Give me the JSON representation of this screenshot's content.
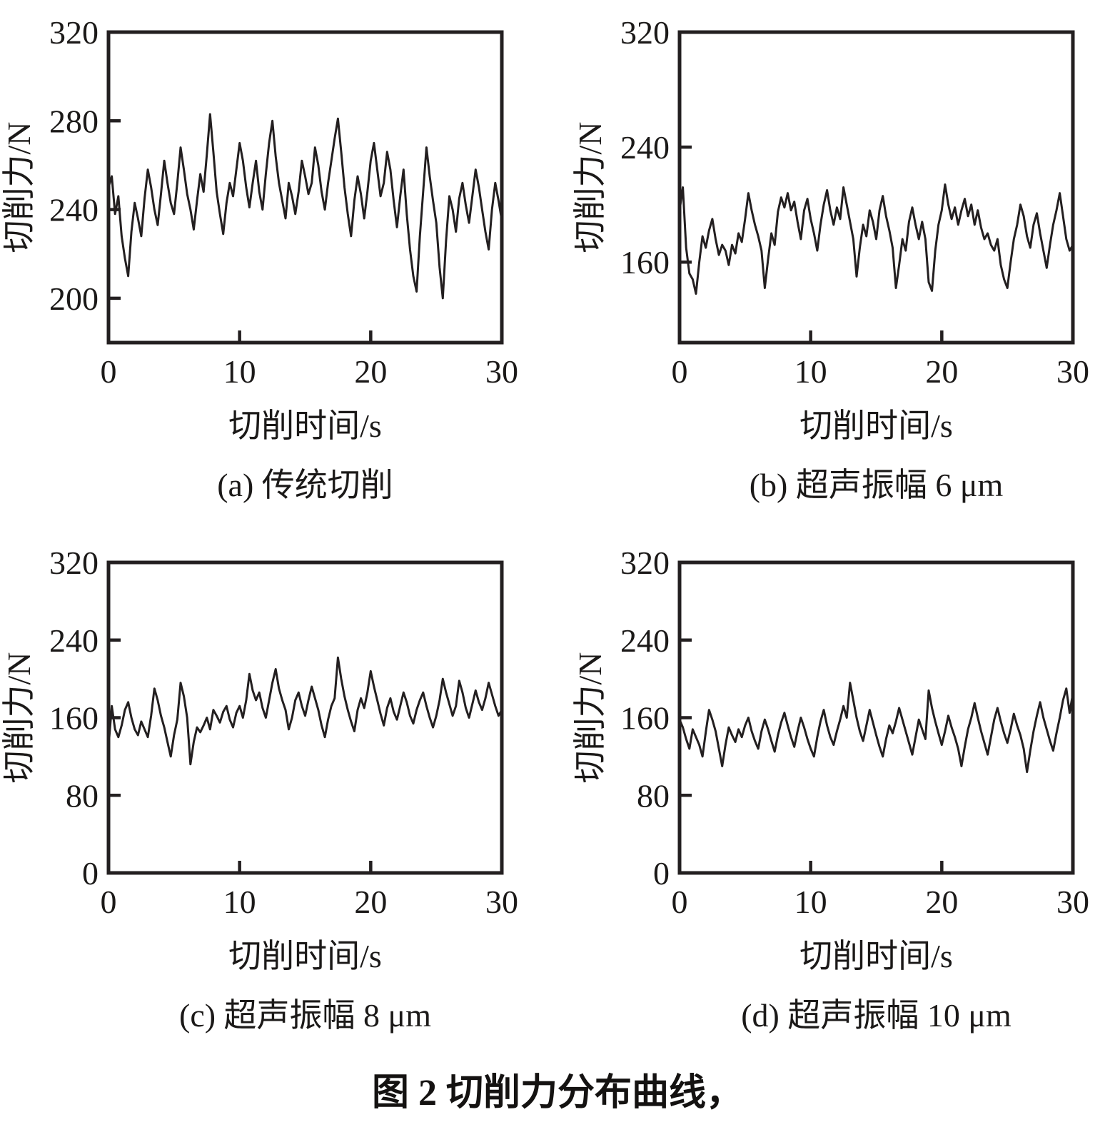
{
  "figure": {
    "caption": "图 2 切削力分布曲线，"
  },
  "colors": {
    "line": "#231f20",
    "axis": "#231f20",
    "text": "#1b1918",
    "background": "#ffffff"
  },
  "chart_data": [
    {
      "type": "line",
      "panel": "a",
      "caption": "(a) 传统切削",
      "xlabel": "切削时间/s",
      "ylabel": "切削力/N",
      "xlim": [
        0,
        30
      ],
      "xticks": [
        0,
        10,
        20,
        30
      ],
      "ylim": [
        180,
        320
      ],
      "yticks": [
        320,
        280,
        240,
        200
      ],
      "x_step": 0.25,
      "values": [
        250,
        255,
        238,
        246,
        228,
        218,
        210,
        230,
        243,
        236,
        228,
        245,
        258,
        250,
        240,
        233,
        247,
        262,
        252,
        243,
        238,
        252,
        268,
        258,
        247,
        240,
        231,
        244,
        256,
        248,
        265,
        283,
        266,
        248,
        238,
        229,
        243,
        252,
        246,
        258,
        270,
        262,
        250,
        241,
        252,
        262,
        248,
        240,
        256,
        270,
        280,
        264,
        252,
        244,
        236,
        252,
        246,
        238,
        248,
        262,
        255,
        247,
        252,
        268,
        260,
        248,
        240,
        252,
        262,
        272,
        281,
        266,
        250,
        238,
        228,
        244,
        255,
        247,
        236,
        248,
        262,
        270,
        258,
        246,
        252,
        266,
        258,
        244,
        232,
        246,
        258,
        238,
        222,
        210,
        203,
        228,
        248,
        268,
        255,
        244,
        234,
        214,
        200,
        226,
        246,
        240,
        230,
        245,
        252,
        242,
        234,
        246,
        258,
        250,
        240,
        230,
        222,
        240,
        252,
        244,
        235
      ]
    },
    {
      "type": "line",
      "panel": "b",
      "caption": "(b) 超声振幅 6 μm",
      "xlabel": "切削时间/s",
      "ylabel": "切削力/N",
      "xlim": [
        0,
        30
      ],
      "xticks": [
        0,
        10,
        20,
        30
      ],
      "ylim": [
        104,
        320
      ],
      "yticks": [
        320,
        240,
        160
      ],
      "x_step": 0.25,
      "values": [
        196,
        212,
        170,
        152,
        148,
        138,
        160,
        178,
        170,
        182,
        190,
        176,
        165,
        172,
        168,
        158,
        172,
        166,
        180,
        174,
        190,
        208,
        196,
        186,
        178,
        168,
        142,
        162,
        180,
        172,
        195,
        205,
        198,
        208,
        196,
        202,
        188,
        176,
        196,
        204,
        190,
        180,
        168,
        186,
        200,
        210,
        196,
        186,
        198,
        190,
        212,
        200,
        188,
        176,
        150,
        170,
        186,
        178,
        196,
        188,
        176,
        196,
        206,
        192,
        182,
        170,
        142,
        158,
        176,
        168,
        188,
        198,
        186,
        176,
        188,
        176,
        146,
        140,
        168,
        186,
        196,
        214,
        200,
        190,
        198,
        186,
        196,
        204,
        192,
        200,
        186,
        196,
        184,
        176,
        180,
        172,
        168,
        176,
        158,
        148,
        142,
        160,
        176,
        186,
        200,
        192,
        178,
        170,
        186,
        194,
        180,
        168,
        156,
        172,
        186,
        196,
        208,
        192,
        176,
        168,
        172
      ]
    },
    {
      "type": "line",
      "panel": "c",
      "caption": "(c) 超声振幅 8 μm",
      "xlabel": "切削时间/s",
      "ylabel": "切削力/N",
      "xlim": [
        0,
        30
      ],
      "xticks": [
        0,
        10,
        20,
        30
      ],
      "ylim": [
        0,
        320
      ],
      "yticks": [
        320,
        240,
        160,
        80,
        0
      ],
      "x_step": 0.25,
      "values": [
        130,
        172,
        148,
        140,
        152,
        168,
        176,
        160,
        148,
        142,
        156,
        148,
        140,
        162,
        190,
        178,
        162,
        150,
        135,
        120,
        142,
        158,
        196,
        182,
        160,
        112,
        135,
        150,
        145,
        152,
        160,
        148,
        168,
        162,
        155,
        166,
        172,
        158,
        150,
        165,
        172,
        160,
        178,
        205,
        188,
        178,
        186,
        170,
        160,
        178,
        196,
        210,
        190,
        178,
        168,
        148,
        160,
        178,
        186,
        172,
        162,
        178,
        192,
        180,
        168,
        152,
        140,
        158,
        172,
        180,
        222,
        200,
        182,
        168,
        156,
        146,
        168,
        180,
        170,
        186,
        208,
        192,
        178,
        164,
        152,
        170,
        180,
        166,
        158,
        172,
        186,
        176,
        162,
        154,
        168,
        178,
        186,
        172,
        160,
        150,
        162,
        178,
        200,
        186,
        174,
        162,
        172,
        198,
        186,
        170,
        160,
        174,
        188,
        176,
        168,
        180,
        196,
        184,
        172,
        162,
        168
      ]
    },
    {
      "type": "line",
      "panel": "d",
      "caption": "(d) 超声振幅 10 μm",
      "xlabel": "切削时间/s",
      "ylabel": "切削力/N",
      "xlim": [
        0,
        30
      ],
      "xticks": [
        0,
        10,
        20,
        30
      ],
      "ylim": [
        0,
        320
      ],
      "yticks": [
        320,
        240,
        160,
        80,
        0
      ],
      "x_step": 0.25,
      "values": [
        158,
        150,
        138,
        128,
        148,
        140,
        132,
        120,
        145,
        168,
        158,
        146,
        128,
        110,
        132,
        150,
        142,
        135,
        148,
        140,
        152,
        160,
        146,
        136,
        128,
        146,
        158,
        148,
        136,
        125,
        142,
        155,
        165,
        152,
        140,
        130,
        146,
        160,
        150,
        138,
        128,
        120,
        140,
        156,
        168,
        152,
        140,
        132,
        146,
        158,
        172,
        160,
        196,
        178,
        160,
        146,
        136,
        152,
        168,
        155,
        142,
        130,
        120,
        138,
        152,
        144,
        156,
        170,
        158,
        146,
        134,
        122,
        140,
        158,
        148,
        138,
        188,
        170,
        156,
        144,
        132,
        146,
        162,
        150,
        140,
        128,
        110,
        130,
        148,
        160,
        175,
        160,
        146,
        134,
        122,
        140,
        158,
        170,
        156,
        144,
        134,
        148,
        164,
        152,
        142,
        128,
        104,
        126,
        146,
        162,
        176,
        160,
        148,
        136,
        126,
        144,
        160,
        178,
        190,
        165,
        185
      ]
    }
  ]
}
